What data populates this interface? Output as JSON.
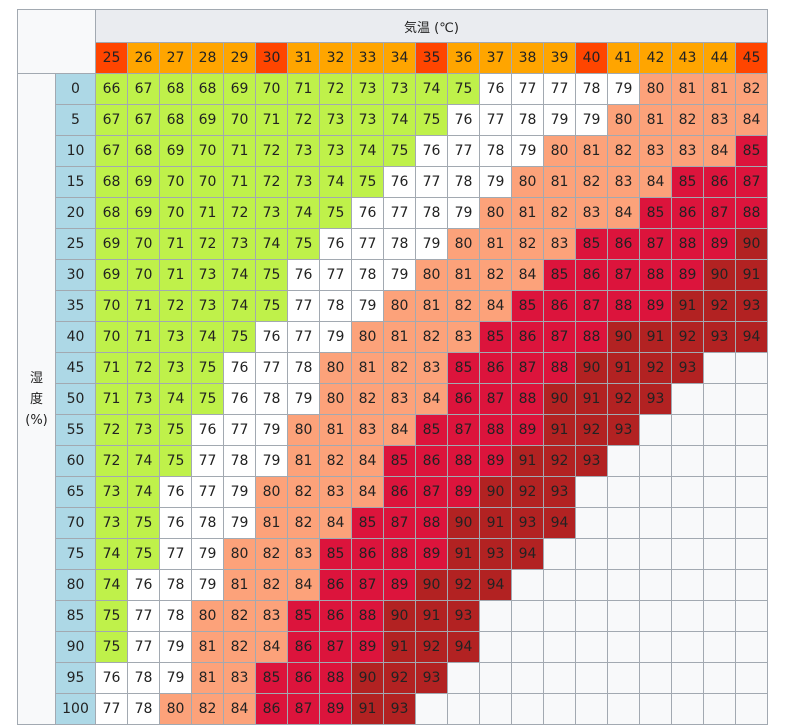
{
  "chart_data": {
    "type": "table",
    "title": "",
    "xlabel": "気温 (℃)",
    "ylabel": "湿度 (%)",
    "temperatures": [
      "25",
      "26",
      "27",
      "28",
      "29",
      "30",
      "31",
      "32",
      "33",
      "34",
      "35",
      "36",
      "37",
      "38",
      "39",
      "40",
      "41",
      "42",
      "43",
      "44",
      "45"
    ],
    "humidities": [
      "0",
      "5",
      "10",
      "15",
      "20",
      "25",
      "30",
      "35",
      "40",
      "45",
      "50",
      "55",
      "60",
      "65",
      "70",
      "75",
      "80",
      "85",
      "90",
      "95",
      "100"
    ],
    "rows": [
      [
        "66",
        "67",
        "68",
        "68",
        "69",
        "70",
        "71",
        "72",
        "73",
        "73",
        "74",
        "75",
        "76",
        "77",
        "77",
        "78",
        "79",
        "80",
        "81",
        "81",
        "82"
      ],
      [
        "67",
        "67",
        "68",
        "69",
        "70",
        "71",
        "72",
        "73",
        "73",
        "74",
        "75",
        "76",
        "77",
        "78",
        "79",
        "79",
        "80",
        "81",
        "82",
        "83",
        "84"
      ],
      [
        "67",
        "68",
        "69",
        "70",
        "71",
        "72",
        "73",
        "73",
        "74",
        "75",
        "76",
        "77",
        "78",
        "79",
        "80",
        "81",
        "82",
        "83",
        "83",
        "84",
        "85"
      ],
      [
        "68",
        "69",
        "70",
        "70",
        "71",
        "72",
        "73",
        "74",
        "75",
        "76",
        "77",
        "78",
        "79",
        "80",
        "81",
        "82",
        "83",
        "84",
        "85",
        "86",
        "87"
      ],
      [
        "68",
        "69",
        "70",
        "71",
        "72",
        "73",
        "74",
        "75",
        "76",
        "77",
        "78",
        "79",
        "80",
        "81",
        "82",
        "83",
        "84",
        "85",
        "86",
        "87",
        "88"
      ],
      [
        "69",
        "70",
        "71",
        "72",
        "73",
        "74",
        "75",
        "76",
        "77",
        "78",
        "79",
        "80",
        "81",
        "82",
        "83",
        "85",
        "86",
        "87",
        "88",
        "89",
        "90"
      ],
      [
        "69",
        "70",
        "71",
        "73",
        "74",
        "75",
        "76",
        "77",
        "78",
        "79",
        "80",
        "81",
        "82",
        "84",
        "85",
        "86",
        "87",
        "88",
        "89",
        "90",
        "91"
      ],
      [
        "70",
        "71",
        "72",
        "73",
        "74",
        "75",
        "77",
        "78",
        "79",
        "80",
        "81",
        "82",
        "84",
        "85",
        "86",
        "87",
        "88",
        "89",
        "91",
        "92",
        "93"
      ],
      [
        "70",
        "71",
        "73",
        "74",
        "75",
        "76",
        "77",
        "79",
        "80",
        "81",
        "82",
        "83",
        "85",
        "86",
        "87",
        "88",
        "90",
        "91",
        "92",
        "93",
        "94"
      ],
      [
        "71",
        "72",
        "73",
        "75",
        "76",
        "77",
        "78",
        "80",
        "81",
        "82",
        "83",
        "85",
        "86",
        "87",
        "88",
        "90",
        "91",
        "92",
        "93",
        "",
        ""
      ],
      [
        "71",
        "73",
        "74",
        "75",
        "76",
        "78",
        "79",
        "80",
        "82",
        "83",
        "84",
        "86",
        "87",
        "88",
        "90",
        "91",
        "92",
        "93",
        "",
        "",
        ""
      ],
      [
        "72",
        "73",
        "75",
        "76",
        "77",
        "79",
        "80",
        "81",
        "83",
        "84",
        "85",
        "87",
        "88",
        "89",
        "91",
        "92",
        "93",
        "",
        "",
        "",
        ""
      ],
      [
        "72",
        "74",
        "75",
        "77",
        "78",
        "79",
        "81",
        "82",
        "84",
        "85",
        "86",
        "88",
        "89",
        "91",
        "92",
        "93",
        "",
        "",
        "",
        "",
        ""
      ],
      [
        "73",
        "74",
        "76",
        "77",
        "79",
        "80",
        "82",
        "83",
        "84",
        "86",
        "87",
        "89",
        "90",
        "92",
        "93",
        "",
        "",
        "",
        "",
        "",
        ""
      ],
      [
        "73",
        "75",
        "76",
        "78",
        "79",
        "81",
        "82",
        "84",
        "85",
        "87",
        "88",
        "90",
        "91",
        "93",
        "94",
        "",
        "",
        "",
        "",
        "",
        ""
      ],
      [
        "74",
        "75",
        "77",
        "79",
        "80",
        "82",
        "83",
        "85",
        "86",
        "88",
        "89",
        "91",
        "93",
        "94",
        "",
        "",
        "",
        "",
        "",
        "",
        ""
      ],
      [
        "74",
        "76",
        "78",
        "79",
        "81",
        "82",
        "84",
        "86",
        "87",
        "89",
        "90",
        "92",
        "94",
        "",
        "",
        "",
        "",
        "",
        "",
        "",
        ""
      ],
      [
        "75",
        "77",
        "78",
        "80",
        "82",
        "83",
        "85",
        "86",
        "88",
        "90",
        "91",
        "93",
        "",
        "",
        "",
        "",
        "",
        "",
        "",
        "",
        ""
      ],
      [
        "75",
        "77",
        "79",
        "81",
        "82",
        "84",
        "86",
        "87",
        "89",
        "91",
        "92",
        "94",
        "",
        "",
        "",
        "",
        "",
        "",
        "",
        "",
        ""
      ],
      [
        "76",
        "78",
        "79",
        "81",
        "83",
        "85",
        "86",
        "88",
        "90",
        "92",
        "93",
        "",
        "",
        "",
        "",
        "",
        "",
        "",
        "",
        "",
        ""
      ],
      [
        "77",
        "78",
        "80",
        "82",
        "84",
        "86",
        "87",
        "89",
        "91",
        "93",
        "",
        "",
        "",
        "",
        "",
        "",
        "",
        "",
        "",
        "",
        ""
      ]
    ],
    "color_bands": [
      {
        "min": 0,
        "max": 75,
        "color": "#bff14a"
      },
      {
        "min": 76,
        "max": 79,
        "color": "#ffffff"
      },
      {
        "min": 80,
        "max": 84,
        "color": "#fca27a"
      },
      {
        "min": 85,
        "max": 89,
        "color": "#dc143c"
      },
      {
        "min": 90,
        "max": 999,
        "color": "#b22222"
      }
    ],
    "header_colors": {
      "default": "#ffa500",
      "accent": "#ff4500"
    },
    "header_accent_temps": [
      "25",
      "30",
      "35",
      "40",
      "45"
    ],
    "hum_header_color": "#add8e6",
    "empty_color": "#f8f9fa"
  }
}
